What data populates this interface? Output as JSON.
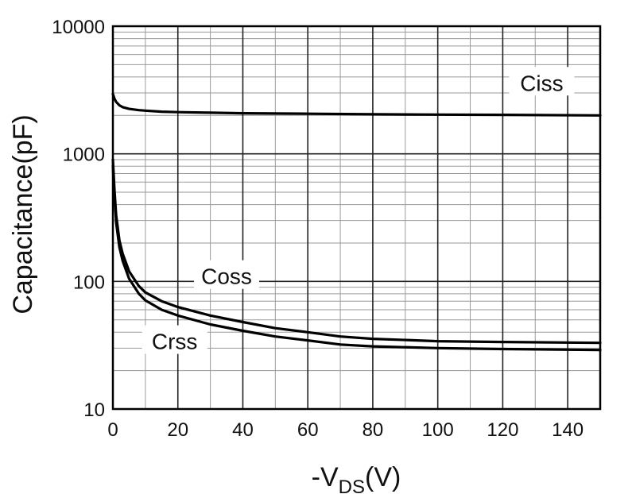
{
  "chart_data": {
    "type": "line",
    "title": "",
    "xlabel": "-V",
    "xlabel_subscript": "DS",
    "xlabel_suffix": "(V)",
    "ylabel": "Capacitance(pF)",
    "y_scale": "log",
    "xlim": [
      0,
      150
    ],
    "ylim": [
      10,
      10000
    ],
    "grid": true,
    "x_ticks": [
      0,
      20,
      40,
      60,
      80,
      100,
      120,
      140
    ],
    "x_tick_labels": [
      "0",
      "20",
      "40",
      "60",
      "80",
      "100",
      "120",
      "140"
    ],
    "y_ticks": [
      10,
      100,
      1000,
      10000
    ],
    "y_tick_labels": [
      "10",
      "100",
      "1000",
      "10000"
    ],
    "series": [
      {
        "name": "Ciss",
        "x": [
          0,
          0.5,
          1,
          2,
          3,
          5,
          8,
          10,
          15,
          20,
          30,
          40,
          60,
          80,
          100,
          120,
          150
        ],
        "values": [
          2950,
          2700,
          2550,
          2400,
          2320,
          2250,
          2200,
          2180,
          2140,
          2120,
          2100,
          2080,
          2060,
          2040,
          2030,
          2020,
          2000
        ]
      },
      {
        "name": "Coss",
        "x": [
          0,
          0.5,
          1,
          2,
          3,
          5,
          8,
          10,
          15,
          20,
          30,
          40,
          50,
          60,
          70,
          80,
          100,
          120,
          150
        ],
        "values": [
          900,
          520,
          330,
          210,
          165,
          120,
          92,
          82,
          70,
          63,
          54,
          48,
          43,
          40,
          37,
          35.5,
          34,
          33.5,
          33
        ]
      },
      {
        "name": "Crss",
        "x": [
          0,
          0.5,
          1,
          2,
          3,
          5,
          8,
          10,
          15,
          20,
          30,
          40,
          50,
          60,
          70,
          80,
          100,
          120,
          150
        ],
        "values": [
          800,
          460,
          290,
          185,
          145,
          105,
          80,
          71,
          60,
          54,
          46,
          41,
          37,
          34.5,
          32,
          31,
          30,
          29.5,
          29
        ]
      }
    ],
    "annotations": [
      {
        "text": "Ciss",
        "series": "Ciss"
      },
      {
        "text": "Coss",
        "series": "Coss"
      },
      {
        "text": "Crss",
        "series": "Crss"
      }
    ]
  }
}
